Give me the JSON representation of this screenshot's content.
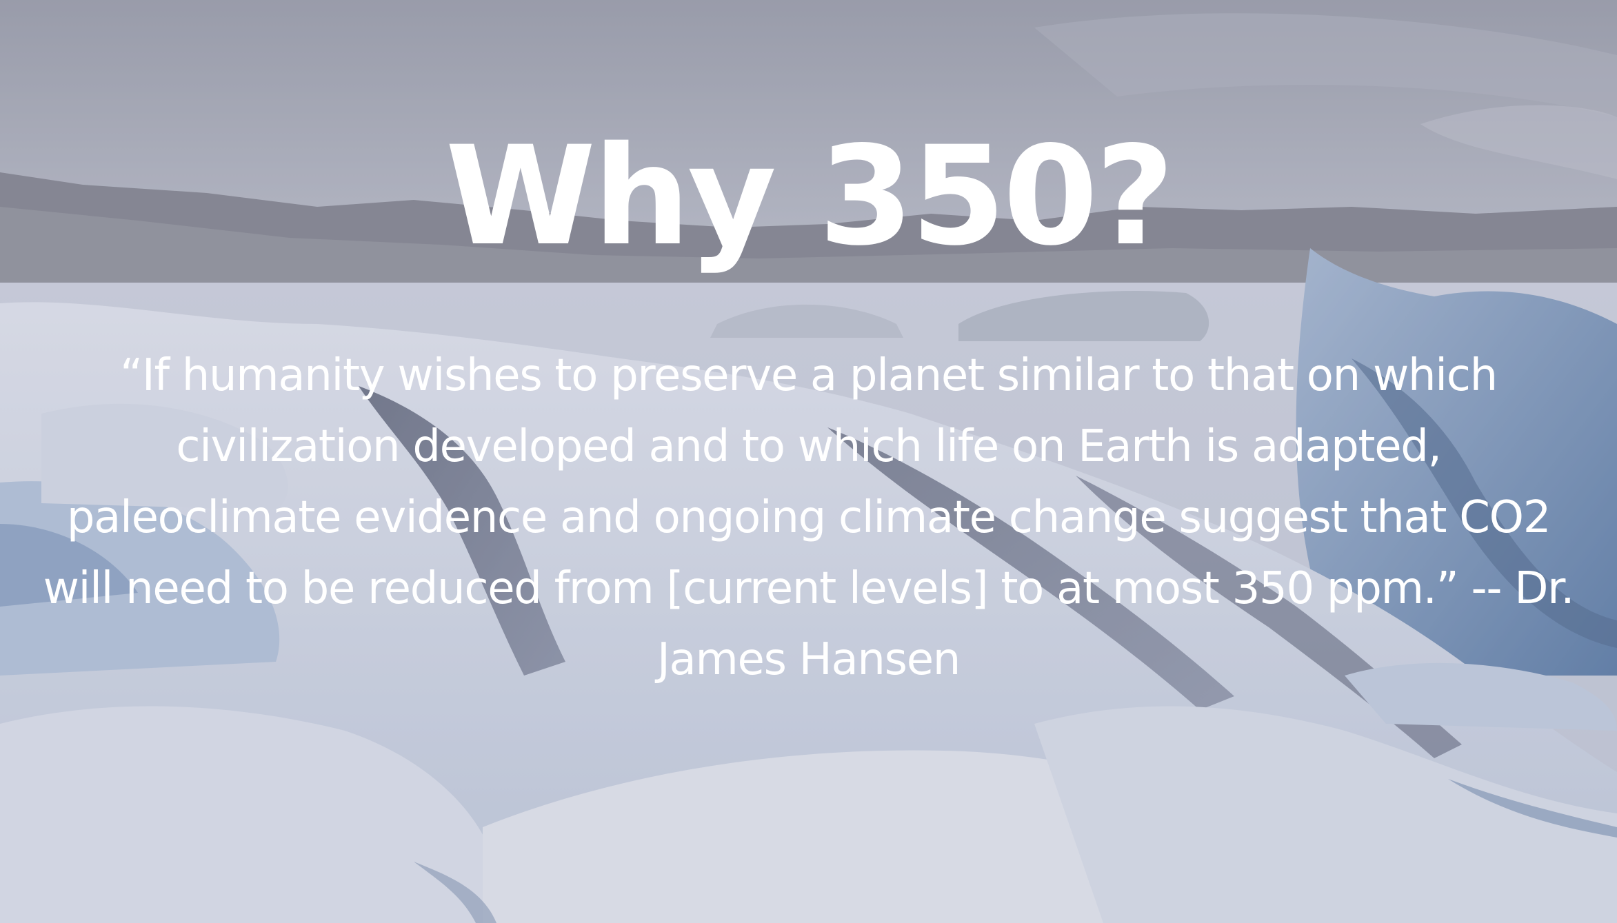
{
  "hero": {
    "title": "Why 350?",
    "quote": "“If humanity wishes to preserve a planet similar to that on which civilization developed and to which life on Earth is adapted, paleoclimate evidence and ongoing climate change suggest that CO2 will need to be reduced from [current levels] to at most 350 ppm.” -- Dr. James Hansen"
  },
  "colors": {
    "text": "#ffffff",
    "overlay": "#9698af",
    "ice": "#dfe7f2",
    "glacier_blue": "#5d80a9"
  }
}
